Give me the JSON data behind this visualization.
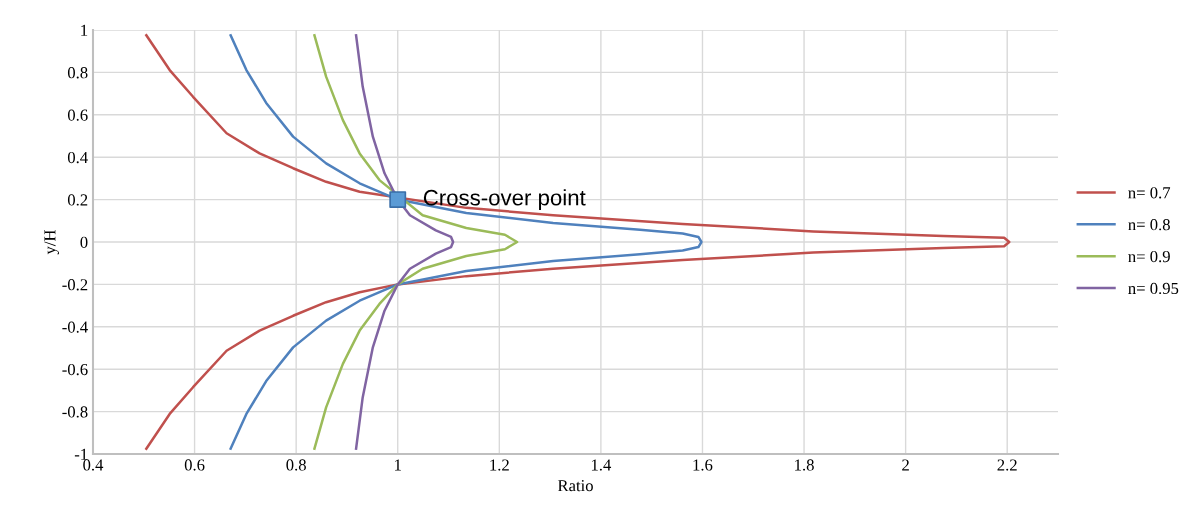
{
  "chart_data": {
    "type": "line",
    "xlabel": "Ratio",
    "ylabel": "y/H",
    "xlim": [
      0.4,
      2.3
    ],
    "xticks": [
      0.4,
      0.6,
      0.8,
      1,
      1.2,
      1.4,
      1.6,
      1.8,
      2,
      2.2
    ],
    "ylim": [
      -1,
      1
    ],
    "yticks": [
      -1,
      -0.8,
      -0.6,
      -0.4,
      -0.2,
      0,
      0.2,
      0.4,
      0.6,
      0.8,
      1
    ],
    "grid": true,
    "legend": "right",
    "marker": "none",
    "series": [
      {
        "name": "n= 0.7",
        "color": "#c0504d",
        "x": [
          0.505,
          0.551,
          0.597,
          0.663,
          0.728,
          0.794,
          0.859,
          0.925,
          1.135,
          1.306,
          1.561,
          1.818,
          2.074,
          2.194,
          2.204,
          2.194,
          2.074,
          1.818,
          1.561,
          1.306,
          1.135,
          1,
          0.925,
          0.859,
          0.794,
          0.728,
          0.663,
          0.597,
          0.551,
          0.505
        ],
        "values": [
          0.975,
          0.811,
          0.685,
          0.513,
          0.418,
          0.348,
          0.284,
          0.237,
          0.161,
          0.126,
          0.085,
          0.05,
          0.028,
          0.02,
          0,
          -0.02,
          -0.028,
          -0.05,
          -0.085,
          -0.126,
          -0.161,
          -0.2,
          -0.237,
          -0.284,
          -0.348,
          -0.418,
          -0.513,
          -0.685,
          -0.811,
          -0.975
        ]
      },
      {
        "name": "n= 0.8",
        "color": "#4f81bd",
        "x": [
          0.671,
          0.702,
          0.741,
          0.794,
          0.859,
          0.925,
          1,
          1.135,
          1.306,
          1.477,
          1.561,
          1.592,
          1.598,
          1.592,
          1.561,
          1.477,
          1.306,
          1.135,
          1,
          0.925,
          0.859,
          0.794,
          0.741,
          0.702,
          0.671
        ],
        "values": [
          0.975,
          0.811,
          0.656,
          0.497,
          0.371,
          0.277,
          0.2,
          0.137,
          0.09,
          0.058,
          0.04,
          0.024,
          0,
          -0.024,
          -0.04,
          -0.058,
          -0.09,
          -0.137,
          -0.2,
          -0.277,
          -0.371,
          -0.497,
          -0.656,
          -0.811,
          -0.975
        ]
      },
      {
        "name": "n= 0.9",
        "color": "#9bbb59",
        "x": [
          0.836,
          0.859,
          0.892,
          0.925,
          0.964,
          1.049,
          1.135,
          1.211,
          1.235,
          1.211,
          1.135,
          1.049,
          1,
          0.964,
          0.925,
          0.892,
          0.859,
          0.836
        ],
        "values": [
          0.975,
          0.78,
          0.575,
          0.418,
          0.292,
          0.126,
          0.066,
          0.034,
          0,
          -0.034,
          -0.066,
          -0.126,
          -0.2,
          -0.292,
          -0.418,
          -0.575,
          -0.78,
          -0.975
        ]
      },
      {
        "name": "n= 0.95",
        "color": "#8064a2",
        "x": [
          0.918,
          0.931,
          0.951,
          0.974,
          1,
          1.024,
          1.075,
          1.105,
          1.109,
          1.105,
          1.075,
          1.024,
          1,
          0.974,
          0.951,
          0.931,
          0.918
        ],
        "values": [
          0.975,
          0.733,
          0.497,
          0.324,
          0.2,
          0.126,
          0.055,
          0.024,
          0,
          -0.024,
          -0.055,
          -0.126,
          -0.2,
          -0.324,
          -0.497,
          -0.733,
          -0.975
        ]
      },
      {
        "type": "scatter",
        "marker": "square",
        "color": "#5b9bd5",
        "x": [
          1
        ],
        "values": [
          0.2
        ]
      }
    ],
    "annotations": [
      {
        "text": "Cross-over point",
        "x": 1,
        "y": 0.2
      }
    ]
  }
}
